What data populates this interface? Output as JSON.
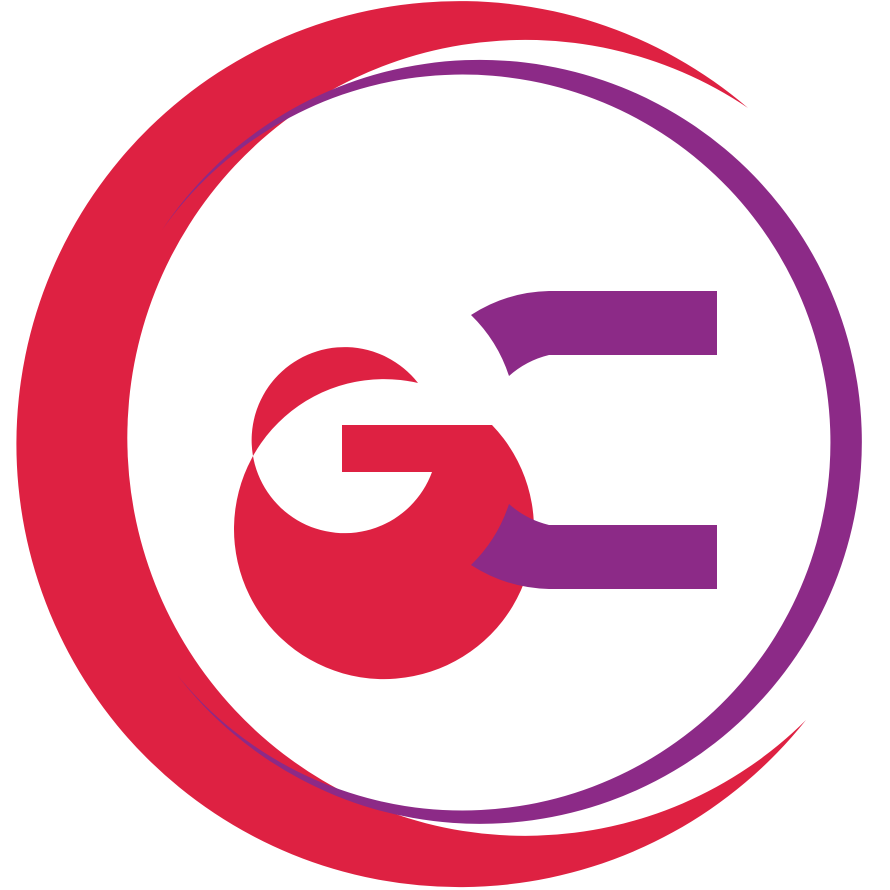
{
  "logo": {
    "monogram": "GC",
    "colors": {
      "red": "#DE2142",
      "purple": "#8C2A87",
      "background": "#FFFFFF"
    }
  }
}
